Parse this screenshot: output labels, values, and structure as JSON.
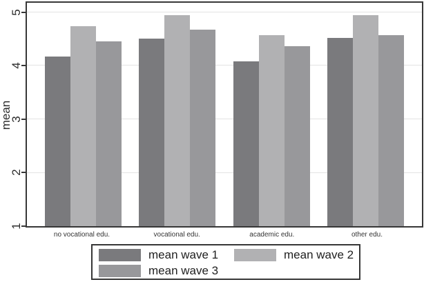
{
  "chart_data": {
    "type": "bar",
    "title": "",
    "xlabel": "",
    "ylabel": "mean",
    "categories": [
      "no vocational edu.",
      "vocational edu.",
      "academic edu.",
      "other edu."
    ],
    "series": [
      {
        "name": "mean wave 1",
        "color": "#7a7a7d",
        "values": [
          4.17,
          4.51,
          4.09,
          4.52
        ]
      },
      {
        "name": "mean wave 2",
        "color": "#b1b1b3",
        "values": [
          4.74,
          4.95,
          4.58,
          4.95
        ]
      },
      {
        "name": "mean wave 3",
        "color": "#98989b",
        "values": [
          4.46,
          4.68,
          4.37,
          4.57
        ]
      }
    ],
    "ylim": [
      1,
      5.18
    ],
    "yticks": [
      1,
      2,
      3,
      4,
      5
    ],
    "grid": true,
    "legend_position": "bottom",
    "legend_columns": 2,
    "axis_color": "#363636",
    "gridline_color": "#e3e3e3"
  }
}
